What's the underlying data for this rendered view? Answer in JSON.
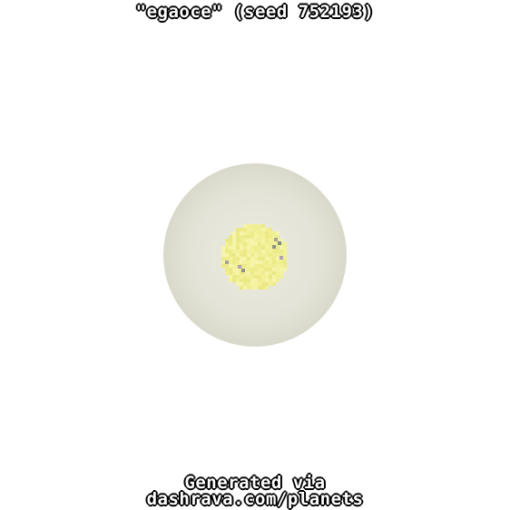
{
  "title": "\"egaoce\" (seed 752193)",
  "footer": {
    "line1": "Generated via",
    "line2": "dashrava.com/planets"
  },
  "planet": {
    "name": "egaoce",
    "seed": "752193",
    "atmosphere_color": "#e2e2d6",
    "atmosphere_edge_color": "#d6d6c8",
    "surface_color": "#f0ee8c",
    "surface_highlight_color": "#f6f4a8",
    "feature_colors": [
      "#a8a29e",
      "#8f8f86",
      "#b39fb4",
      "#7d8a86"
    ]
  }
}
